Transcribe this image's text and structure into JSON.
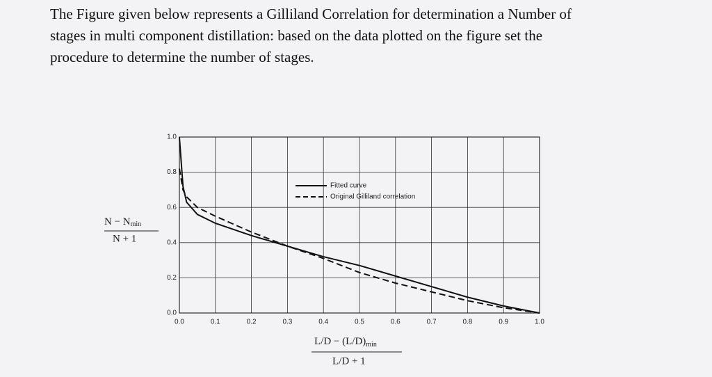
{
  "question": [
    "The Figure given below represents a Gilliland Correlation for determination a Number of",
    "stages in multi component distillation: based on the data plotted on the figure set the",
    "procedure to determine the number of stages."
  ],
  "chart_data": {
    "type": "line",
    "xlabel": {
      "numerator": "L/D − (L/D)",
      "numerator_sub": "min",
      "denominator": "L/D + 1"
    },
    "ylabel": {
      "numerator": "N − N",
      "numerator_sub": "min",
      "denominator": "N + 1"
    },
    "x": [
      0,
      0.01,
      0.02,
      0.05,
      0.1,
      0.2,
      0.3,
      0.4,
      0.5,
      0.6,
      0.7,
      0.8,
      0.9,
      1.0
    ],
    "series": [
      {
        "name": "Fitted curve",
        "color": "#111111",
        "dash": false,
        "values": [
          1.0,
          0.72,
          0.63,
          0.56,
          0.51,
          0.44,
          0.38,
          0.32,
          0.27,
          0.21,
          0.15,
          0.09,
          0.04,
          0.0
        ]
      },
      {
        "name": "Original Gilliland correlation",
        "color": "#111111",
        "dash": true,
        "values": [
          0.82,
          0.7,
          0.66,
          0.6,
          0.55,
          0.46,
          0.38,
          0.31,
          0.23,
          0.17,
          0.12,
          0.07,
          0.03,
          0.0
        ]
      }
    ],
    "xlim": [
      0,
      1.0
    ],
    "ylim": [
      0,
      1.0
    ],
    "xticks": [
      {
        "value": 0,
        "label": "0.0"
      },
      {
        "value": 0.1,
        "label": "0.1"
      },
      {
        "value": 0.2,
        "label": "0.2"
      },
      {
        "value": 0.3,
        "label": "0.3"
      },
      {
        "value": 0.4,
        "label": "0.4"
      },
      {
        "value": 0.5,
        "label": "0.5"
      },
      {
        "value": 0.6,
        "label": "0.6"
      },
      {
        "value": 0.7,
        "label": "0.7"
      },
      {
        "value": 0.8,
        "label": "0.8"
      },
      {
        "value": 0.9,
        "label": "0.9"
      },
      {
        "value": 1.0,
        "label": "1.0"
      }
    ],
    "yticks": [
      {
        "value": 0,
        "label": "0.0"
      },
      {
        "value": 0.2,
        "label": "0.2"
      },
      {
        "value": 0.4,
        "label": "0.4"
      },
      {
        "value": 0.6,
        "label": "0.6"
      },
      {
        "value": 0.8,
        "label": "0.8"
      },
      {
        "value": 1.0,
        "label": "1.0"
      }
    ],
    "grid": true,
    "legend": "upper right"
  }
}
